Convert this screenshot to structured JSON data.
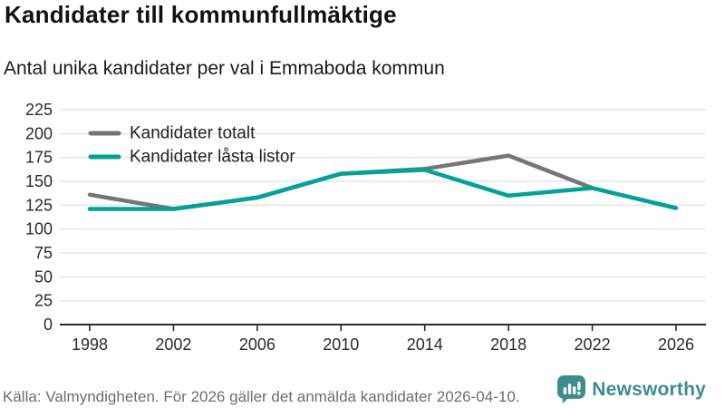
{
  "header": {
    "title": "Kandidater till kommunfullmäktige",
    "subtitle": "Antal unika kandidater per val i Emmaboda kommun"
  },
  "chart_data": {
    "type": "line",
    "title": "Kandidater till kommunfullmäktige",
    "subtitle": "Antal unika kandidater per val i Emmaboda kommun",
    "x": [
      1998,
      2002,
      2006,
      2010,
      2014,
      2018,
      2022,
      2026
    ],
    "series": [
      {
        "name": "Kandidater totalt",
        "color": "#757575",
        "values": [
          136,
          121,
          133,
          158,
          163,
          177,
          143,
          null
        ]
      },
      {
        "name": "Kandidater låsta listor",
        "color": "#00a29a",
        "values": [
          121,
          121,
          133,
          158,
          162,
          135,
          143,
          122
        ]
      }
    ],
    "xlabel": "",
    "ylabel": "",
    "ylim": [
      0,
      225
    ],
    "yticks": [
      0,
      25,
      50,
      75,
      100,
      125,
      150,
      175,
      200,
      225
    ],
    "grid": true,
    "legend_position": "top-left-inside"
  },
  "footer": {
    "source": "Källa: Valmyndigheten. För 2026 gäller det anmälda kandidater 2026-04-10."
  },
  "logo": {
    "text": "Newsworthy",
    "icon": "newsworthy-speech-bubble-bar-chart-icon"
  },
  "colors": {
    "total_line": "#757575",
    "locked_line": "#00a29a",
    "grid": "#e4e4e4",
    "axis": "#2b2b2b",
    "tick_label": "#2b2b2b",
    "legend_label": "#222222",
    "footer_text": "#6d6d6d",
    "logo": "#3e8d8d",
    "background": "#ffffff"
  }
}
